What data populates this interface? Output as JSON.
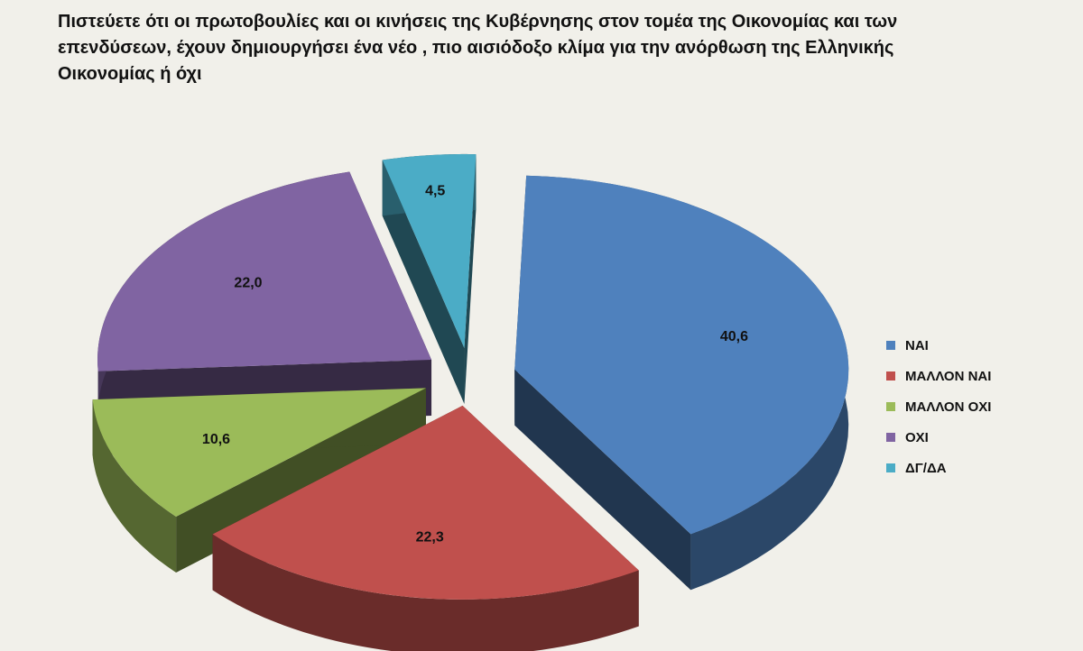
{
  "title": "Πιστεύετε ότι οι πρωτοβουλίες και οι κινήσεις της Κυβέρνησης στον τομέα της Οικονομίας και των επενδύσεων, έχουν δημιουργήσει ένα νέο , πιο αισιόδοξο κλίμα για την ανόρθωση της Ελληνικής Οικονομίας ή όχι",
  "chart_data": {
    "type": "pie",
    "style": "3d-exploded",
    "title": "Πιστεύετε ότι οι πρωτοβουλίες και οι κινήσεις της Κυβέρνησης στον τομέα της Οικονομίας και των επενδύσεων, έχουν δημιουργήσει ένα νέο , πιο αισιόδοξο κλίμα για την ανόρθωση της Ελληνικής Οικονομίας ή όχι",
    "legend_position": "right",
    "slices": [
      {
        "label": "ΝΑΙ",
        "value": 40.6,
        "value_label": "40,6",
        "color": "#4f81bd"
      },
      {
        "label": "ΜΑΛΛΟΝ ΝΑΙ",
        "value": 22.3,
        "value_label": "22,3",
        "color": "#c0504d"
      },
      {
        "label": "ΜΑΛΛΟΝ ΟΧΙ",
        "value": 10.6,
        "value_label": "10,6",
        "color": "#9bbb59"
      },
      {
        "label": "ΟΧΙ",
        "value": 22.0,
        "value_label": "22,0",
        "color": "#8064a2"
      },
      {
        "label": "ΔΓ/ΔΑ",
        "value": 4.5,
        "value_label": "4,5",
        "color": "#4bacc6"
      }
    ]
  }
}
